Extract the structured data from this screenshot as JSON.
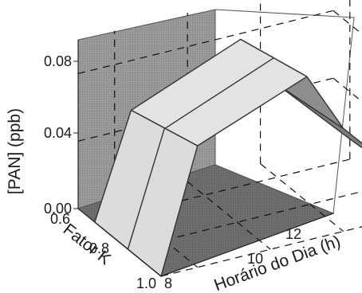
{
  "chart_data": {
    "type": "surface3d",
    "title": "",
    "zlabel": "[PAN] (ppb)",
    "xlabel": "Horário do Dia (h)",
    "ylabel": "Fator K",
    "z_ticks": [
      "0.00",
      "0.04",
      "0.08"
    ],
    "x_ticks": [
      "8",
      "10",
      "12"
    ],
    "y_ticks": [
      "0.6",
      "0.8",
      "1.0"
    ],
    "zlim": [
      0,
      0.1
    ],
    "x": [
      8,
      10,
      12
    ],
    "y": [
      0.6,
      0.8,
      1.0
    ],
    "x_range": [
      7,
      14
    ],
    "y_range": [
      0.5,
      1.0
    ],
    "surface": [
      {
        "hour": 7,
        "values": [
          0.0,
          0.0,
          0.0
        ]
      },
      {
        "hour": 8,
        "values": [
          0.061,
          0.066,
          0.072
        ]
      },
      {
        "hour": 11,
        "values": [
          0.087,
          0.092,
          0.097
        ]
      },
      {
        "hour": 12,
        "values": [
          0.055,
          0.058,
          0.061
        ]
      },
      {
        "hour": 14,
        "values": [
          0.012,
          0.014,
          0.016
        ]
      }
    ],
    "grid": true,
    "colors": {
      "back_wall": "#9a9a9a",
      "floor": "#6e6e6e",
      "front_face": "#dcdcdc",
      "back_slope": "#7d7d7d",
      "edge": "#333333"
    }
  }
}
